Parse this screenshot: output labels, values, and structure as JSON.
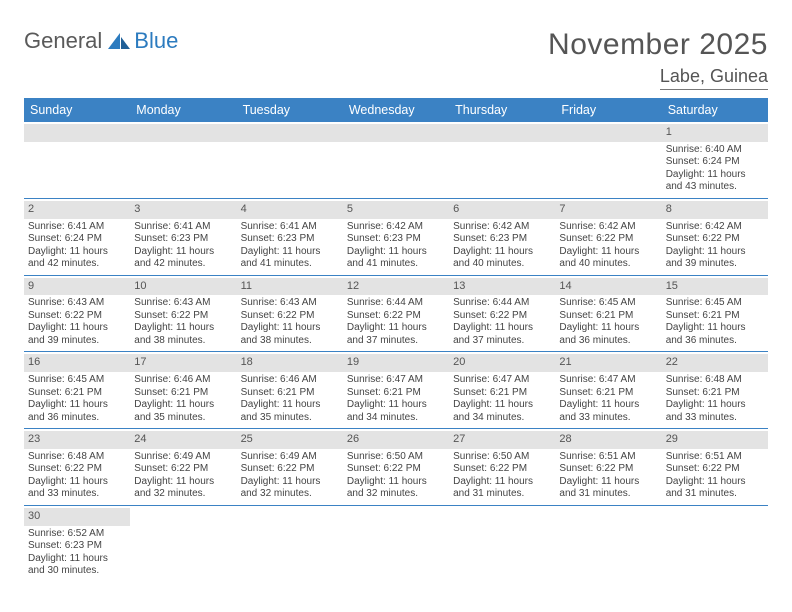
{
  "brand": {
    "part1": "General",
    "part2": "Blue"
  },
  "title": {
    "month": "November 2025",
    "location": "Labe, Guinea"
  },
  "colors": {
    "header_bg": "#3b82c4",
    "header_text": "#ffffff",
    "daybar_bg": "#e3e3e3",
    "text": "#444444",
    "rule": "#3b82c4"
  },
  "weekdays": [
    "Sunday",
    "Monday",
    "Tuesday",
    "Wednesday",
    "Thursday",
    "Friday",
    "Saturday"
  ],
  "start_weekday_index": 6,
  "days": [
    {
      "n": 1,
      "sunrise": "6:40 AM",
      "sunset": "6:24 PM",
      "day_h": 11,
      "day_m": 43
    },
    {
      "n": 2,
      "sunrise": "6:41 AM",
      "sunset": "6:24 PM",
      "day_h": 11,
      "day_m": 42
    },
    {
      "n": 3,
      "sunrise": "6:41 AM",
      "sunset": "6:23 PM",
      "day_h": 11,
      "day_m": 42
    },
    {
      "n": 4,
      "sunrise": "6:41 AM",
      "sunset": "6:23 PM",
      "day_h": 11,
      "day_m": 41
    },
    {
      "n": 5,
      "sunrise": "6:42 AM",
      "sunset": "6:23 PM",
      "day_h": 11,
      "day_m": 41
    },
    {
      "n": 6,
      "sunrise": "6:42 AM",
      "sunset": "6:23 PM",
      "day_h": 11,
      "day_m": 40
    },
    {
      "n": 7,
      "sunrise": "6:42 AM",
      "sunset": "6:22 PM",
      "day_h": 11,
      "day_m": 40
    },
    {
      "n": 8,
      "sunrise": "6:42 AM",
      "sunset": "6:22 PM",
      "day_h": 11,
      "day_m": 39
    },
    {
      "n": 9,
      "sunrise": "6:43 AM",
      "sunset": "6:22 PM",
      "day_h": 11,
      "day_m": 39
    },
    {
      "n": 10,
      "sunrise": "6:43 AM",
      "sunset": "6:22 PM",
      "day_h": 11,
      "day_m": 38
    },
    {
      "n": 11,
      "sunrise": "6:43 AM",
      "sunset": "6:22 PM",
      "day_h": 11,
      "day_m": 38
    },
    {
      "n": 12,
      "sunrise": "6:44 AM",
      "sunset": "6:22 PM",
      "day_h": 11,
      "day_m": 37
    },
    {
      "n": 13,
      "sunrise": "6:44 AM",
      "sunset": "6:22 PM",
      "day_h": 11,
      "day_m": 37
    },
    {
      "n": 14,
      "sunrise": "6:45 AM",
      "sunset": "6:21 PM",
      "day_h": 11,
      "day_m": 36
    },
    {
      "n": 15,
      "sunrise": "6:45 AM",
      "sunset": "6:21 PM",
      "day_h": 11,
      "day_m": 36
    },
    {
      "n": 16,
      "sunrise": "6:45 AM",
      "sunset": "6:21 PM",
      "day_h": 11,
      "day_m": 36
    },
    {
      "n": 17,
      "sunrise": "6:46 AM",
      "sunset": "6:21 PM",
      "day_h": 11,
      "day_m": 35
    },
    {
      "n": 18,
      "sunrise": "6:46 AM",
      "sunset": "6:21 PM",
      "day_h": 11,
      "day_m": 35
    },
    {
      "n": 19,
      "sunrise": "6:47 AM",
      "sunset": "6:21 PM",
      "day_h": 11,
      "day_m": 34
    },
    {
      "n": 20,
      "sunrise": "6:47 AM",
      "sunset": "6:21 PM",
      "day_h": 11,
      "day_m": 34
    },
    {
      "n": 21,
      "sunrise": "6:47 AM",
      "sunset": "6:21 PM",
      "day_h": 11,
      "day_m": 33
    },
    {
      "n": 22,
      "sunrise": "6:48 AM",
      "sunset": "6:21 PM",
      "day_h": 11,
      "day_m": 33
    },
    {
      "n": 23,
      "sunrise": "6:48 AM",
      "sunset": "6:22 PM",
      "day_h": 11,
      "day_m": 33
    },
    {
      "n": 24,
      "sunrise": "6:49 AM",
      "sunset": "6:22 PM",
      "day_h": 11,
      "day_m": 32
    },
    {
      "n": 25,
      "sunrise": "6:49 AM",
      "sunset": "6:22 PM",
      "day_h": 11,
      "day_m": 32
    },
    {
      "n": 26,
      "sunrise": "6:50 AM",
      "sunset": "6:22 PM",
      "day_h": 11,
      "day_m": 32
    },
    {
      "n": 27,
      "sunrise": "6:50 AM",
      "sunset": "6:22 PM",
      "day_h": 11,
      "day_m": 31
    },
    {
      "n": 28,
      "sunrise": "6:51 AM",
      "sunset": "6:22 PM",
      "day_h": 11,
      "day_m": 31
    },
    {
      "n": 29,
      "sunrise": "6:51 AM",
      "sunset": "6:22 PM",
      "day_h": 11,
      "day_m": 31
    },
    {
      "n": 30,
      "sunrise": "6:52 AM",
      "sunset": "6:23 PM",
      "day_h": 11,
      "day_m": 30
    }
  ],
  "labels": {
    "sunrise": "Sunrise:",
    "sunset": "Sunset:",
    "daylight_prefix": "Daylight:",
    "hours_word": "hours",
    "and_word": "and",
    "minutes_word": "minutes."
  }
}
